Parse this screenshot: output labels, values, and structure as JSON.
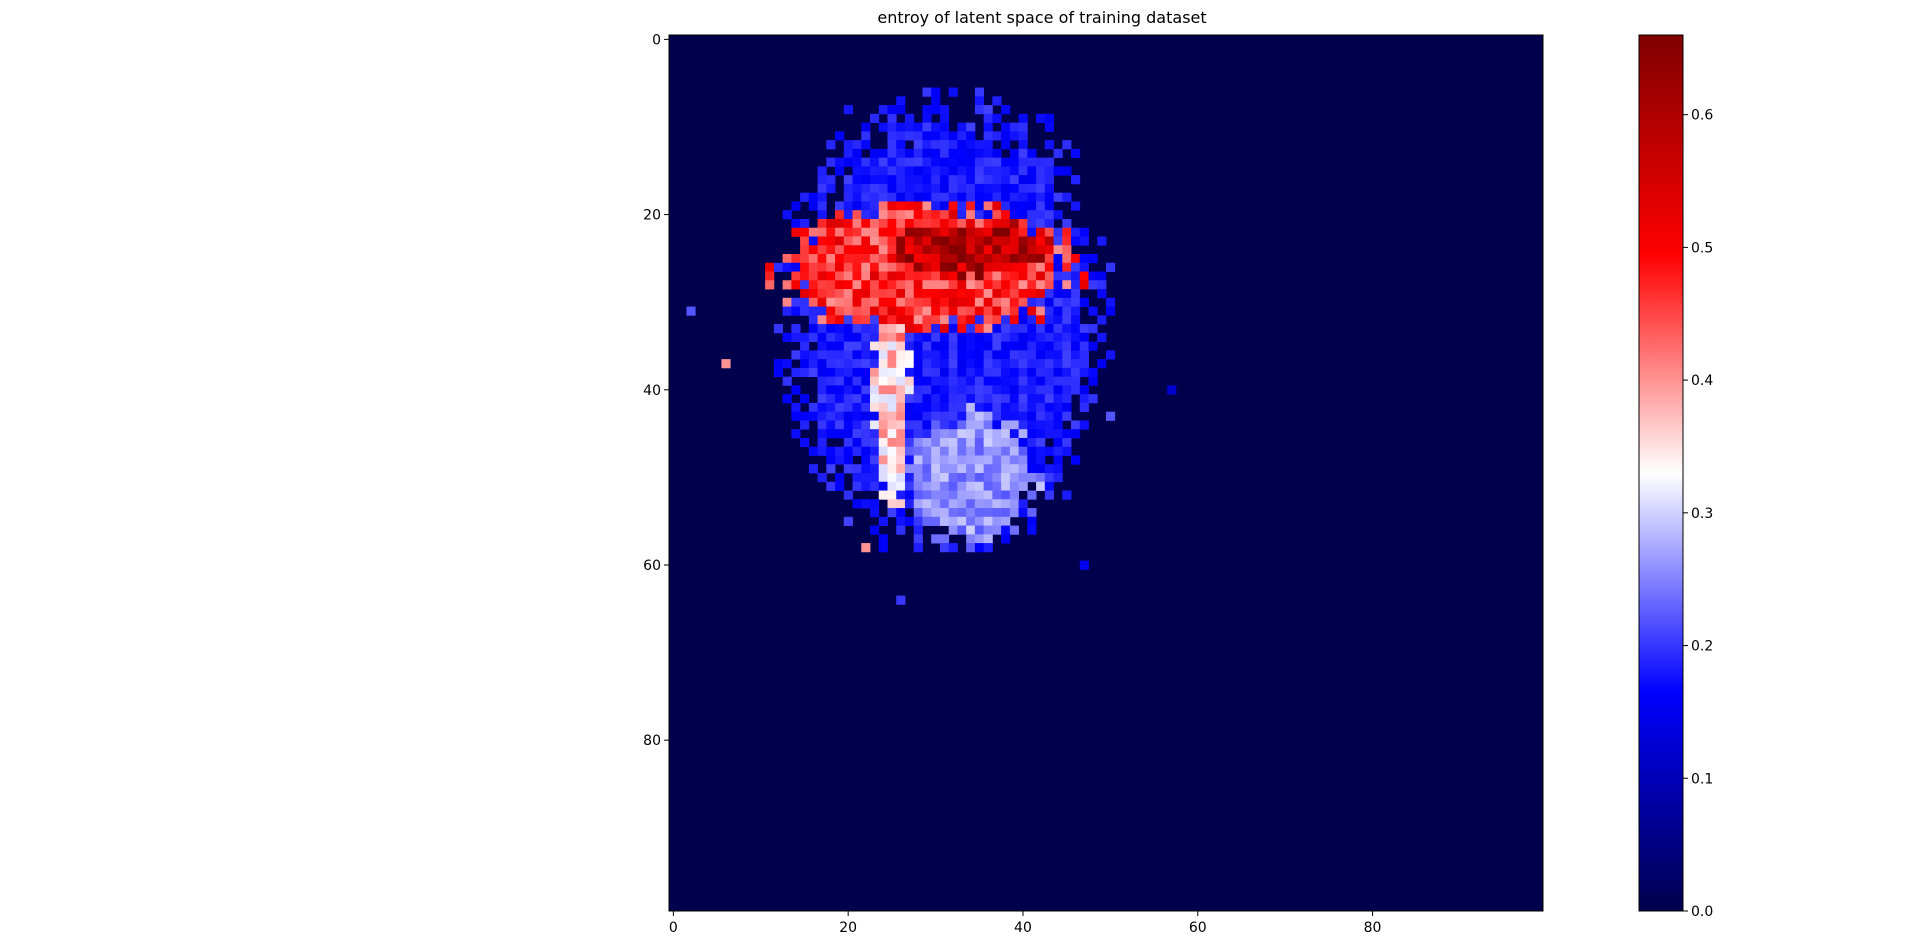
{
  "chart_data": [
    {
      "type": "heatmap",
      "title": "entroy of latent space of training dataset",
      "xlabel": "",
      "ylabel": "",
      "grid_size": [
        100,
        100
      ],
      "x_ticks": [
        0,
        20,
        40,
        60,
        80
      ],
      "y_ticks": [
        0,
        20,
        40,
        60,
        80
      ],
      "y_axis_inverted": true,
      "grid": false,
      "colormap": "seismic",
      "colormap_stops": [
        "#00004c",
        "#0000ff",
        "#ffffff",
        "#ff0000",
        "#800000"
      ],
      "colorbar": {
        "range": [
          0.0,
          0.66
        ],
        "ticks": [
          "0.0",
          "0.1",
          "0.2",
          "0.3",
          "0.4",
          "0.5",
          "0.6"
        ],
        "placement": "right"
      },
      "background_value": 0.0,
      "regions": [
        {
          "shape": "blob",
          "center": [
            31,
            32
          ],
          "radius": [
            17,
            24
          ],
          "value": 0.18
        },
        {
          "shape": "blob",
          "center": [
            34,
            50
          ],
          "radius": [
            7,
            7
          ],
          "value": 0.26
        },
        {
          "shape": "blob",
          "center": [
            29,
            26
          ],
          "radius": [
            16,
            7
          ],
          "value": 0.47
        },
        {
          "shape": "blob",
          "center": [
            34,
            24
          ],
          "radius": [
            9,
            3
          ],
          "value": 0.58
        },
        {
          "shape": "blob",
          "center": [
            25,
            40
          ],
          "radius": [
            2,
            13
          ],
          "value": 0.36
        }
      ],
      "isolated_cells": [
        {
          "x": 22,
          "y": 58,
          "value": 0.4
        },
        {
          "x": 6,
          "y": 37,
          "value": 0.4
        },
        {
          "x": 2,
          "y": 31,
          "value": 0.22
        },
        {
          "x": 26,
          "y": 64,
          "value": 0.2
        },
        {
          "x": 47,
          "y": 60,
          "value": 0.15
        },
        {
          "x": 50,
          "y": 43,
          "value": 0.22
        },
        {
          "x": 22,
          "y": 10,
          "value": 0.15
        },
        {
          "x": 26,
          "y": 8,
          "value": 0.15
        },
        {
          "x": 57,
          "y": 40,
          "value": 0.12
        }
      ]
    }
  ]
}
